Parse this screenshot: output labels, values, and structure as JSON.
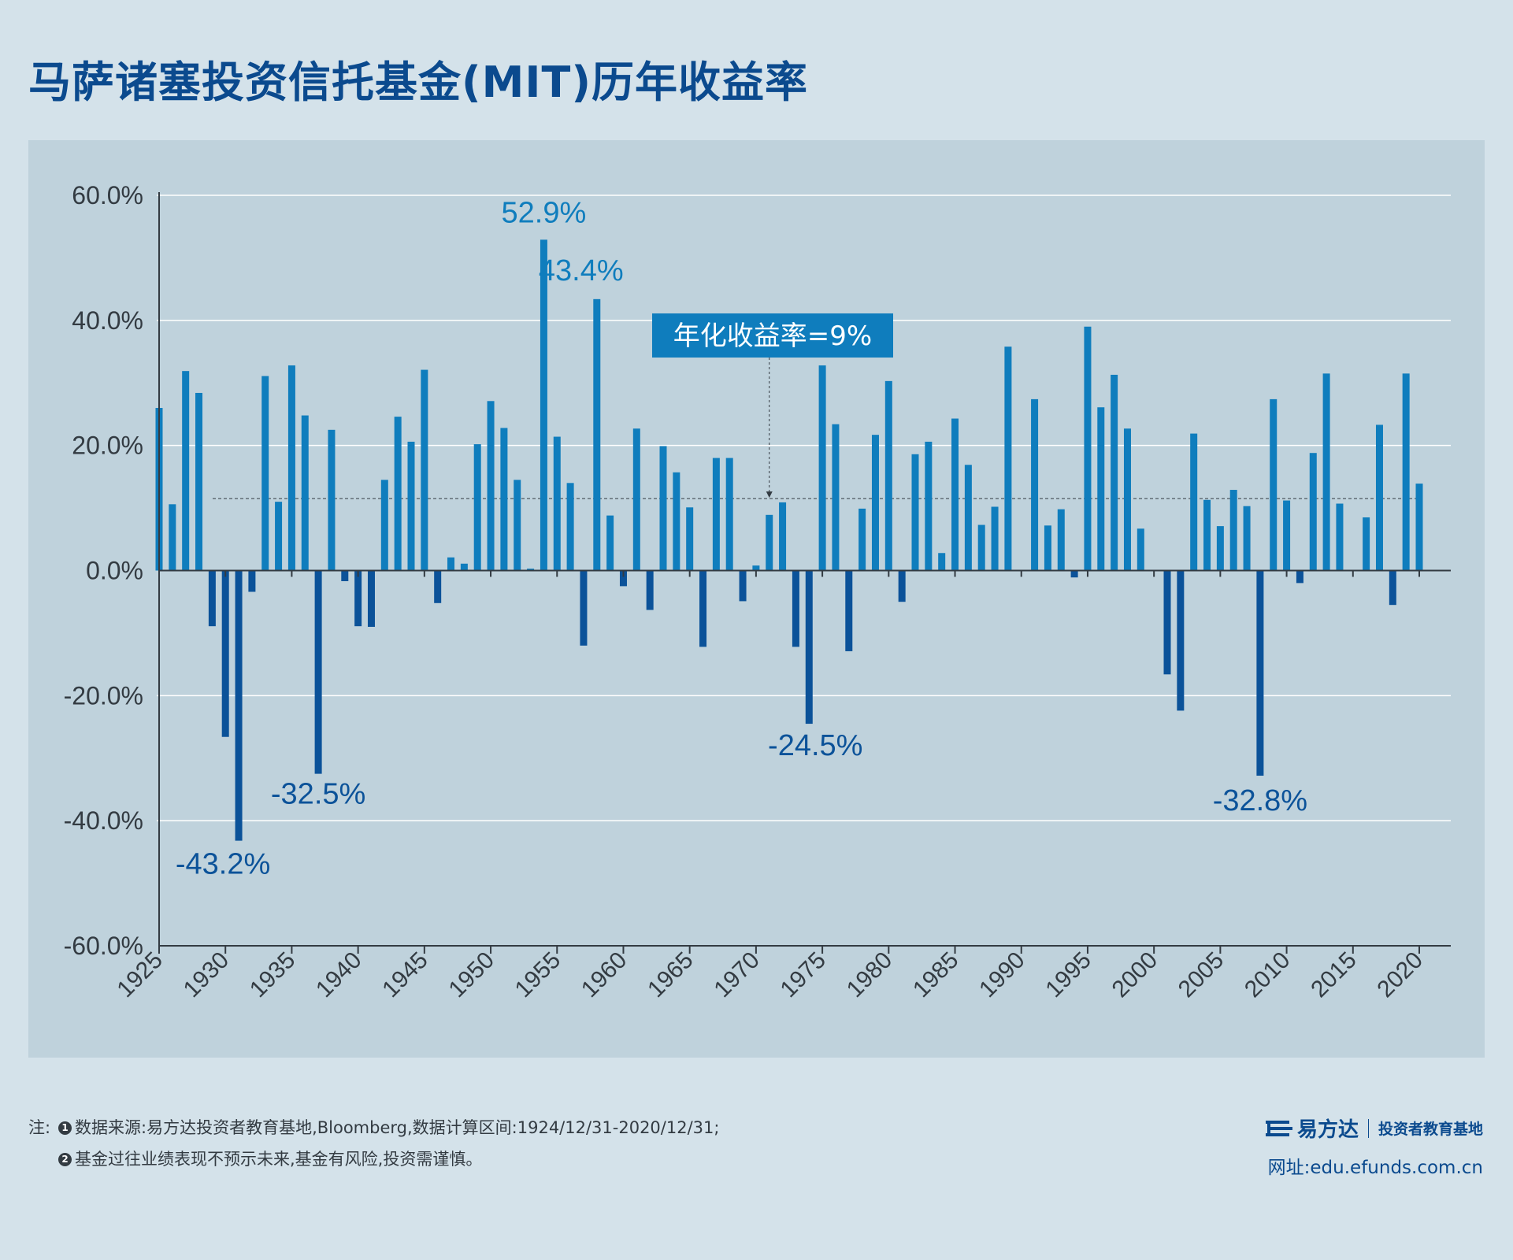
{
  "title": "马萨诸塞投资信托基金(MIT)历年收益率",
  "chart_data": {
    "type": "bar",
    "title": "马萨诸塞投资信托基金(MIT)历年收益率",
    "ylim": [
      -60,
      60
    ],
    "yticks": [
      60,
      40,
      20,
      0,
      -20,
      -40,
      -60
    ],
    "ytick_labels": [
      "60.0%",
      "40.0%",
      "20.0%",
      "0.0%",
      "-20.0%",
      "-40.0%",
      "-60.0%"
    ],
    "xticks": [
      1925,
      1930,
      1935,
      1940,
      1945,
      1950,
      1955,
      1960,
      1965,
      1970,
      1975,
      1980,
      1985,
      1990,
      1995,
      2000,
      2005,
      2010,
      2015,
      2020
    ],
    "grid": true,
    "x": [
      1925,
      1926,
      1927,
      1928,
      1929,
      1930,
      1931,
      1932,
      1933,
      1934,
      1935,
      1936,
      1937,
      1938,
      1939,
      1940,
      1941,
      1942,
      1943,
      1944,
      1945,
      1946,
      1947,
      1948,
      1949,
      1950,
      1951,
      1952,
      1953,
      1954,
      1955,
      1956,
      1957,
      1958,
      1959,
      1960,
      1961,
      1962,
      1963,
      1964,
      1965,
      1966,
      1967,
      1968,
      1969,
      1970,
      1971,
      1972,
      1973,
      1974,
      1975,
      1976,
      1977,
      1978,
      1979,
      1980,
      1981,
      1982,
      1983,
      1984,
      1985,
      1986,
      1987,
      1988,
      1989,
      1990,
      1991,
      1992,
      1993,
      1994,
      1995,
      1996,
      1997,
      1998,
      1999,
      2000,
      2001,
      2002,
      2003,
      2004,
      2005,
      2006,
      2007,
      2008,
      2009,
      2010,
      2011,
      2012,
      2013,
      2014,
      2015,
      2016,
      2017,
      2018,
      2019,
      2020
    ],
    "values": [
      26.0,
      10.6,
      31.9,
      28.4,
      -8.9,
      -26.6,
      -43.2,
      -3.4,
      31.1,
      11.0,
      32.8,
      24.8,
      -32.5,
      22.5,
      -1.7,
      -8.9,
      -9.0,
      14.5,
      24.6,
      20.6,
      32.1,
      -5.2,
      2.1,
      1.1,
      20.2,
      27.1,
      22.8,
      14.5,
      0.3,
      52.9,
      21.4,
      14.0,
      -12.0,
      43.4,
      8.8,
      -2.5,
      22.7,
      -6.3,
      19.9,
      15.7,
      10.1,
      -12.2,
      18.0,
      18.0,
      -4.9,
      0.8,
      8.9,
      10.9,
      -12.2,
      -24.5,
      32.8,
      23.4,
      -12.9,
      9.9,
      21.7,
      30.3,
      -5.0,
      18.6,
      20.6,
      2.8,
      24.3,
      16.9,
      7.3,
      10.2,
      35.8,
      0.0,
      27.4,
      7.2,
      9.8,
      -1.1,
      39.0,
      26.1,
      31.3,
      22.7,
      6.7,
      0.0,
      -16.6,
      -22.4,
      21.9,
      11.3,
      7.1,
      12.9,
      10.3,
      -32.8,
      27.4,
      11.2,
      -2.0,
      18.8,
      31.5,
      10.7,
      -0.1,
      8.5,
      23.3,
      -5.5,
      31.5,
      13.9
    ],
    "avg_line": 11.5,
    "annotations": [
      {
        "year": 1954,
        "text": "52.9%"
      },
      {
        "year": 1958,
        "text": "43.4%"
      },
      {
        "year": 1931,
        "text": "-43.2%"
      },
      {
        "year": 1937,
        "text": "-32.5%"
      },
      {
        "year": 1974,
        "text": "-24.5%"
      },
      {
        "year": 2008,
        "text": "-32.8%"
      }
    ],
    "avg_label": "年化收益率=9%",
    "colors": {
      "positive": "#0f7dbd",
      "negative": "#0b5299",
      "label_pos": "#0f7dbd",
      "label_neg": "#0b5299",
      "avg_box": "#0f7dbd"
    }
  },
  "notes": {
    "prefix": "注:",
    "item1_num": "1",
    "item1": "数据来源:易方达投资者教育基地,Bloomberg,数据计算区间:1924/12/31-2020/12/31;",
    "item2_num": "2",
    "item2": "基金过往业绩表现不预示未来,基金有风险,投资需谨慎。"
  },
  "brand": {
    "logo_icon": "efunds-logo-icon",
    "name": "易方达",
    "sub": "投资者教育基地",
    "site": "网址:edu.efunds.com.cn"
  }
}
